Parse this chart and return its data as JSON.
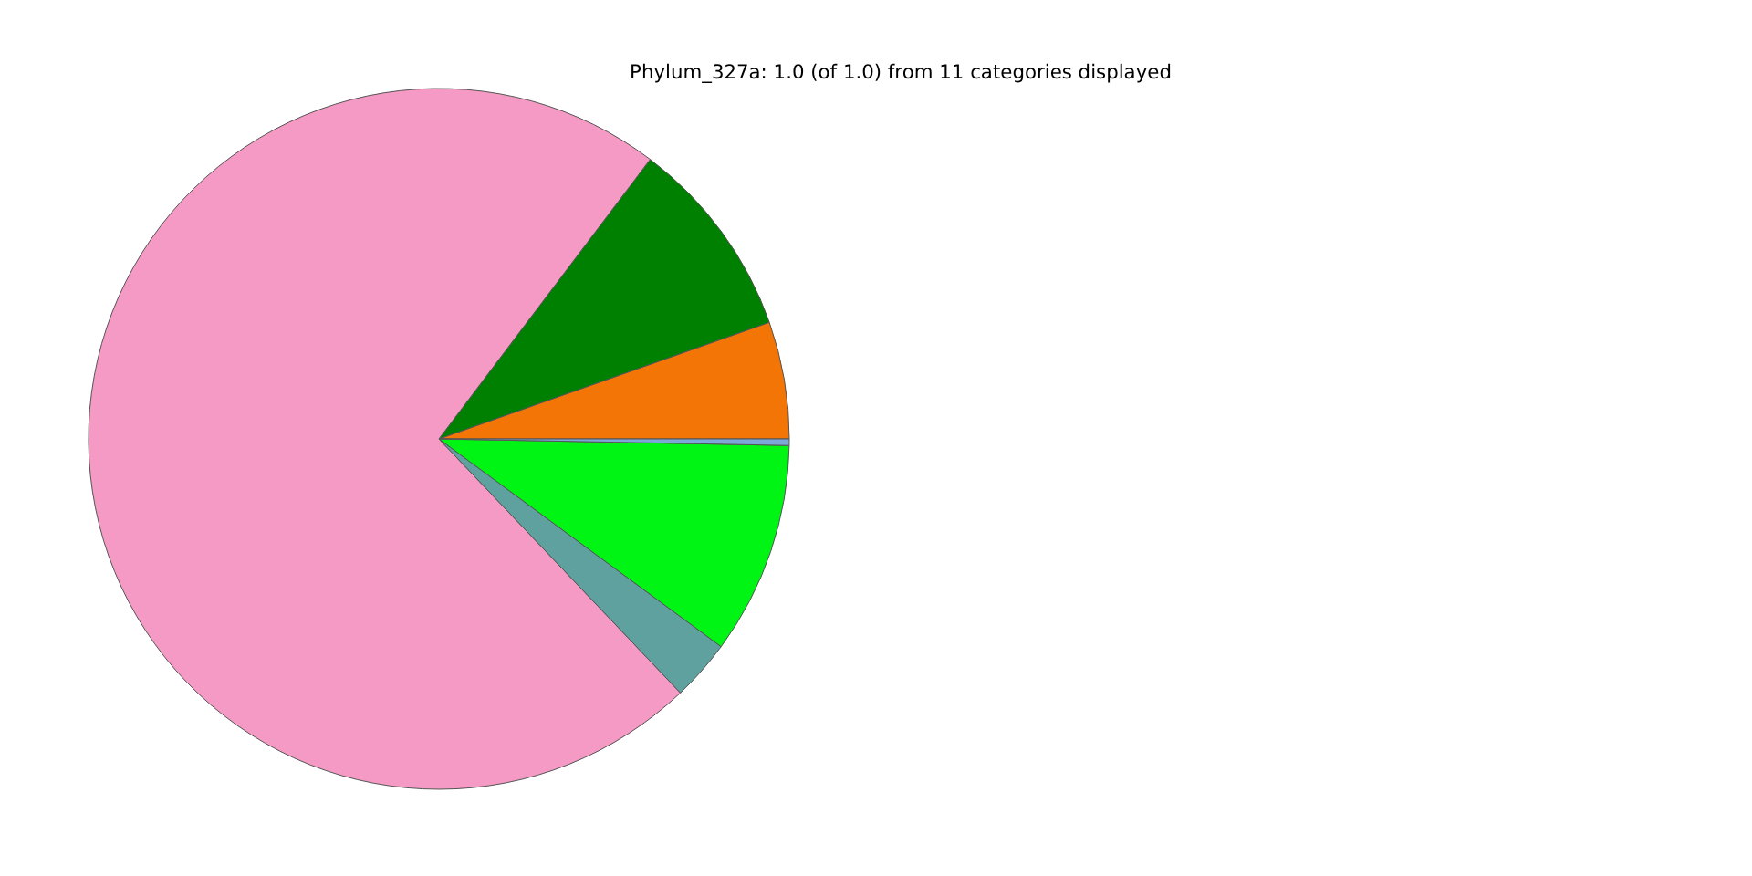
{
  "chart_data": {
    "type": "pie",
    "title": "Phylum_327a: 1.0 (of 1.0) from 11 categories displayed",
    "categories": [
      null,
      null,
      null,
      null,
      null,
      null
    ],
    "values": [
      5.4,
      9.3,
      72.4,
      2.8,
      9.8,
      0.3
    ],
    "colors": [
      "#f37506",
      "#008000",
      "#f49ac4",
      "#5fa19f",
      "#00f514",
      "#7ba7d9"
    ]
  }
}
